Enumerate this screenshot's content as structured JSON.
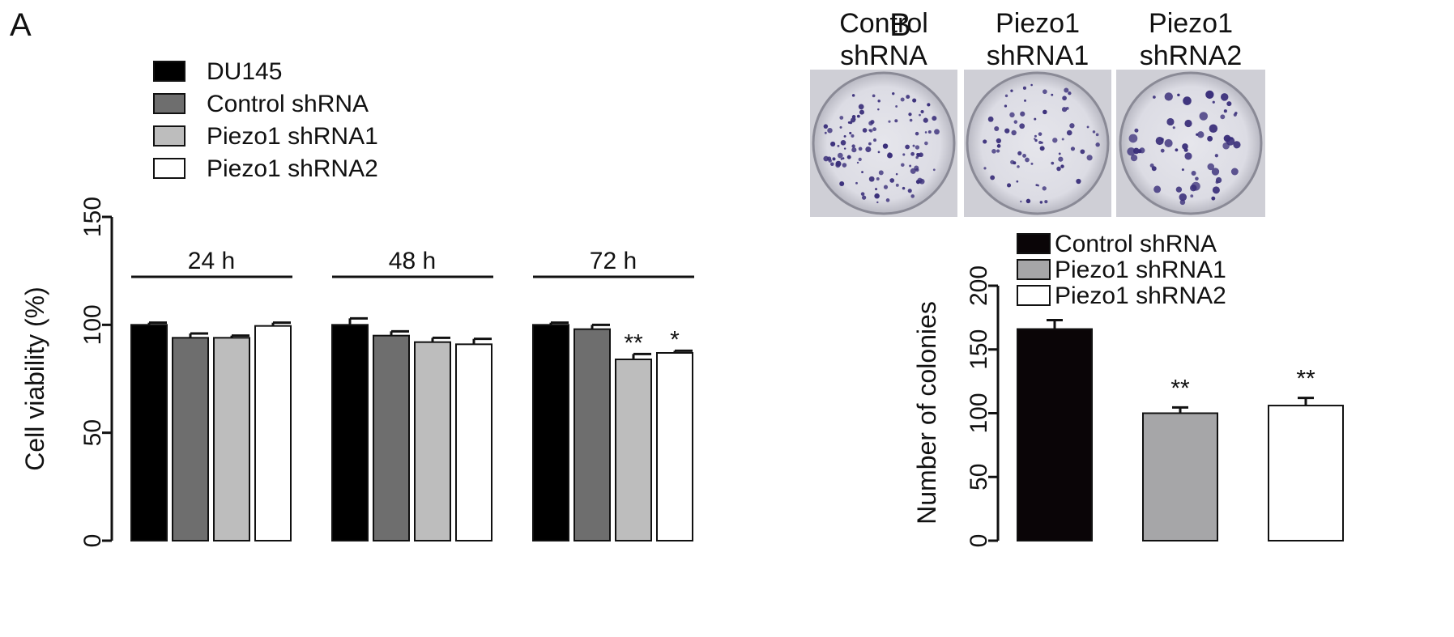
{
  "chart_data": [
    {
      "panel": "A",
      "type": "bar",
      "ylabel": "Cell viability (%)",
      "ylim": [
        0,
        150
      ],
      "yticks": [
        "0",
        "50",
        "100",
        "150"
      ],
      "categories": [
        "24 h",
        "48 h",
        "72 h"
      ],
      "series": [
        {
          "name": "DU145",
          "color": "#000000",
          "values": [
            100,
            100,
            100
          ],
          "errors": [
            1,
            3,
            1
          ],
          "stars": [
            "",
            "",
            ""
          ]
        },
        {
          "name": "Control shRNA",
          "color": "#6e6e6e",
          "values": [
            94,
            95,
            98
          ],
          "errors": [
            2,
            2,
            2
          ],
          "stars": [
            "",
            "",
            ""
          ]
        },
        {
          "name": "Piezo1 shRNA1",
          "color": "#bdbdbd",
          "values": [
            94,
            92,
            84
          ],
          "errors": [
            1,
            2,
            2.5
          ],
          "stars": [
            "",
            "",
            "**"
          ]
        },
        {
          "name": "Piezo1 shRNA2",
          "color": "#ffffff",
          "values": [
            99.5,
            91,
            87
          ],
          "errors": [
            1.5,
            2.5,
            1
          ],
          "stars": [
            "",
            "",
            "*"
          ]
        }
      ],
      "legend_position": "top-left"
    },
    {
      "panel": "B",
      "type": "bar",
      "ylabel": "Number of colonies",
      "ylim": [
        0,
        200
      ],
      "yticks": [
        "0",
        "50",
        "100",
        "150",
        "200"
      ],
      "categories": [
        "Control shRNA",
        "Piezo1 shRNA1",
        "Piezo1 shRNA2"
      ],
      "values": [
        166,
        100,
        106
      ],
      "errors": [
        7,
        4.5,
        6
      ],
      "stars": [
        "",
        "**",
        "**"
      ],
      "colors": [
        "#0a0507",
        "#a6a6a8",
        "#ffffff"
      ],
      "legend_position": "top-right"
    }
  ],
  "plates": {
    "labels": [
      {
        "line1": "Control",
        "line2": "shRNA"
      },
      {
        "line1": "Piezo1",
        "line2": "shRNA1"
      },
      {
        "line1": "Piezo1",
        "line2": "shRNA2"
      }
    ],
    "stain_color": "#3a2f7a"
  }
}
